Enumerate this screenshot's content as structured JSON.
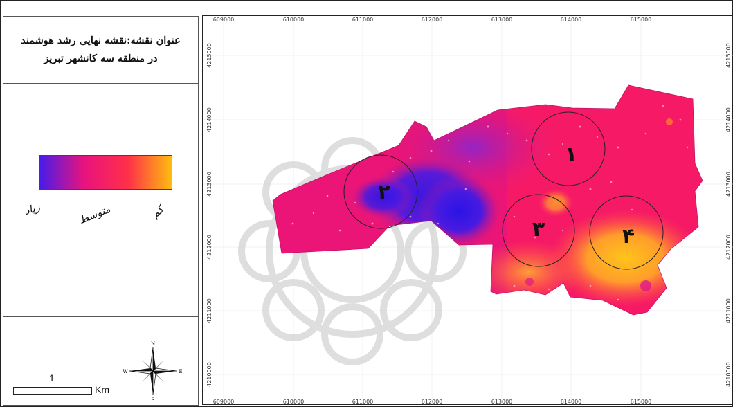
{
  "title": {
    "line1": "عنوان نقشه:نقشه نهایی رشد هوشمند",
    "line2": "در منطقه سه کانشهر تبریز"
  },
  "legend": {
    "high_label": "زیاد",
    "medium_label": "متوسط",
    "low_label": "کم",
    "colors": [
      "#4a1be8",
      "#e8137e",
      "#ff2f49",
      "#ffbc10"
    ]
  },
  "scale": {
    "value": "1",
    "unit": "Km"
  },
  "north_arrow": {
    "n": "N",
    "s": "S",
    "e": "E",
    "w": "W",
    "icon": "compass-rose-icon"
  },
  "grid": {
    "x_ticks": [
      "609000",
      "610000",
      "611000",
      "612000",
      "613000",
      "614000",
      "615000"
    ],
    "y_ticks": [
      "4215000",
      "4214000",
      "4213000",
      "4212000",
      "4211000",
      "4210000"
    ]
  },
  "zones": [
    {
      "id": "zone-1",
      "label": "۱"
    },
    {
      "id": "zone-2",
      "label": "۲"
    },
    {
      "id": "zone-3",
      "label": "۳"
    },
    {
      "id": "zone-4",
      "label": "۴"
    }
  ]
}
